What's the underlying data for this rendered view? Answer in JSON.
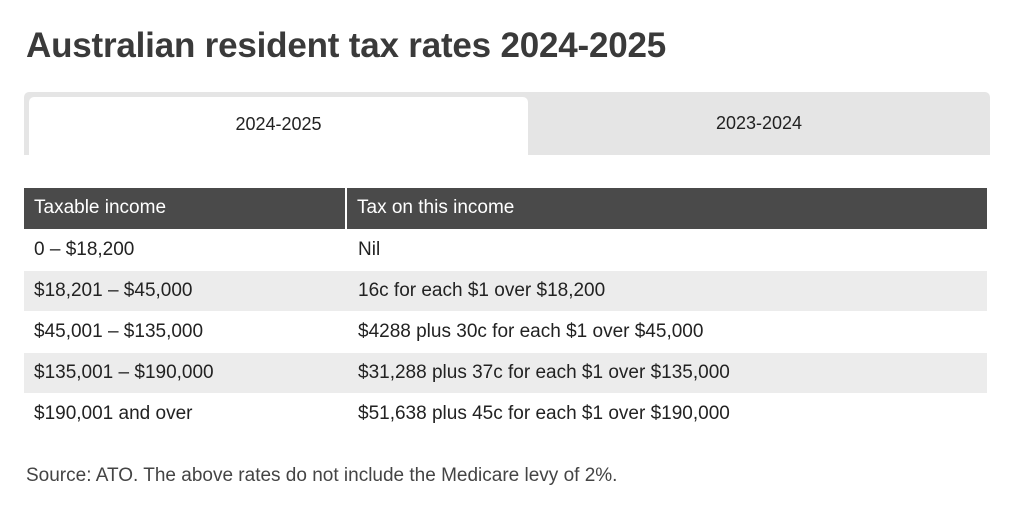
{
  "page": {
    "title": "Australian resident tax rates 2024-2025"
  },
  "tabs": [
    {
      "label": "2024-2025",
      "active": true
    },
    {
      "label": "2023-2024",
      "active": false
    }
  ],
  "table": {
    "headers": [
      "Taxable income",
      "Tax on this income"
    ],
    "rows": [
      {
        "income": "0 – $18,200",
        "tax": "Nil"
      },
      {
        "income": "$18,201 – $45,000",
        "tax": "16c for each $1 over $18,200"
      },
      {
        "income": "$45,001 – $135,000",
        "tax": "$4288 plus 30c for each $1 over $45,000"
      },
      {
        "income": "$135,001 – $190,000",
        "tax": "$31,288 plus 37c for each $1 over $135,000"
      },
      {
        "income": "$190,001 and over",
        "tax": "$51,638 plus 45c for each $1 over $190,000"
      }
    ]
  },
  "footer": {
    "source": "Source: ATO. The above rates do not include the Medicare levy of 2%."
  },
  "colors": {
    "header_bg": "#4a4a4a",
    "stripe_bg": "#ececec",
    "tab_bar_bg": "#e5e5e5"
  }
}
